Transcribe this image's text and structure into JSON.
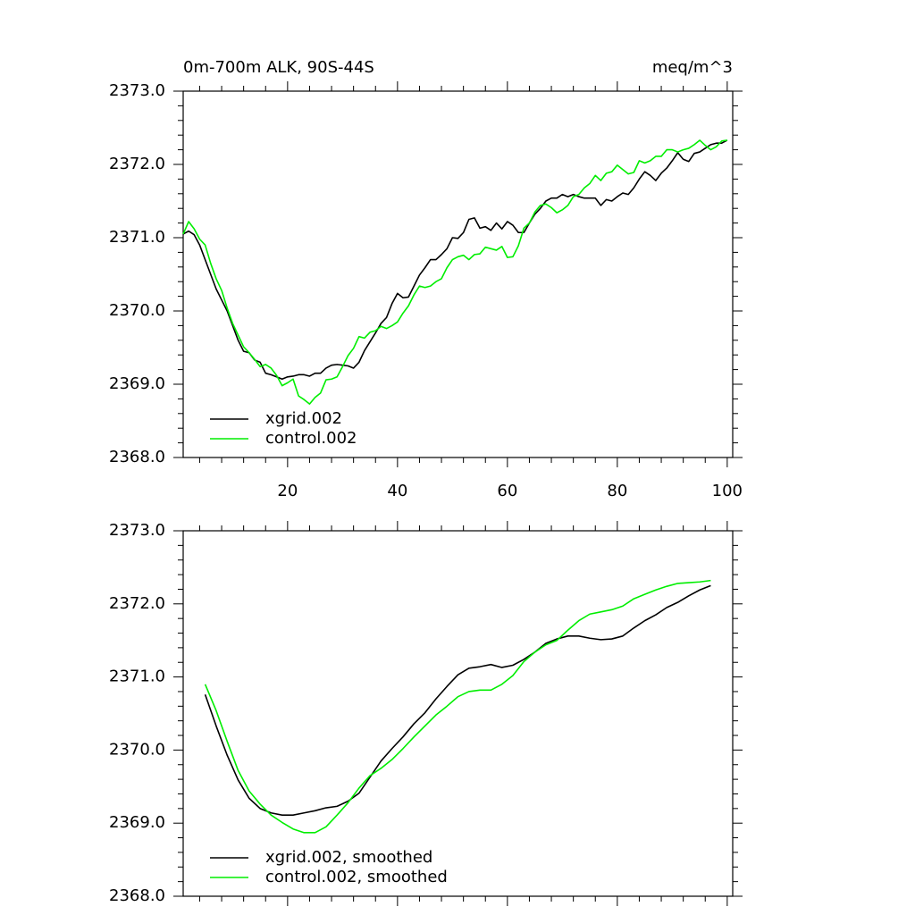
{
  "chart_data": [
    {
      "type": "line",
      "title": "0m-700m ALK, 90S-44S",
      "units": "meq/m^3",
      "x": [
        1,
        2,
        3,
        4,
        5,
        6,
        7,
        8,
        9,
        10,
        11,
        12,
        13,
        14,
        15,
        16,
        17,
        18,
        19,
        20,
        21,
        22,
        23,
        24,
        25,
        26,
        27,
        28,
        29,
        30,
        31,
        32,
        33,
        34,
        35,
        36,
        37,
        38,
        39,
        40,
        41,
        42,
        43,
        44,
        45,
        46,
        47,
        48,
        49,
        50,
        51,
        52,
        53,
        54,
        55,
        56,
        57,
        58,
        59,
        60,
        61,
        62,
        63,
        64,
        65,
        66,
        67,
        68,
        69,
        70,
        71,
        72,
        73,
        74,
        75,
        76,
        77,
        78,
        79,
        80,
        81,
        82,
        83,
        84,
        85,
        86,
        87,
        88,
        89,
        90,
        91,
        92,
        93,
        94,
        95,
        96,
        97,
        98,
        99,
        100
      ],
      "series": [
        {
          "name": "xgrid.002",
          "color": "#000000",
          "values": [
            2371.05,
            2371.09,
            2371.04,
            2370.9,
            2370.7,
            2370.5,
            2370.3,
            2370.15,
            2370.0,
            2369.8,
            2369.6,
            2369.45,
            2369.43,
            2369.33,
            2369.3,
            2369.15,
            2369.13,
            2369.1,
            2369.07,
            2369.1,
            2369.11,
            2369.13,
            2369.13,
            2369.11,
            2369.15,
            2369.15,
            2369.22,
            2369.26,
            2369.27,
            2369.26,
            2369.25,
            2369.22,
            2369.3,
            2369.46,
            2369.58,
            2369.7,
            2369.83,
            2369.91,
            2370.1,
            2370.24,
            2370.18,
            2370.19,
            2370.34,
            2370.49,
            2370.59,
            2370.7,
            2370.7,
            2370.77,
            2370.85,
            2371.0,
            2370.99,
            2371.07,
            2371.25,
            2371.27,
            2371.13,
            2371.15,
            2371.1,
            2371.2,
            2371.12,
            2371.22,
            2371.17,
            2371.07,
            2371.07,
            2371.2,
            2371.32,
            2371.4,
            2371.5,
            2371.54,
            2371.54,
            2371.59,
            2371.56,
            2371.59,
            2371.56,
            2371.54,
            2371.54,
            2371.54,
            2371.44,
            2371.52,
            2371.5,
            2371.56,
            2371.61,
            2371.59,
            2371.68,
            2371.8,
            2371.9,
            2371.85,
            2371.78,
            2371.88,
            2371.95,
            2372.05,
            2372.16,
            2372.07,
            2372.04,
            2372.15,
            2372.17,
            2372.22,
            2372.27,
            2372.29,
            2372.29,
            2372.33
          ]
        },
        {
          "name": "control.002",
          "color": "#00ee00",
          "values": [
            2371.05,
            2371.22,
            2371.12,
            2370.98,
            2370.9,
            2370.65,
            2370.44,
            2370.28,
            2370.04,
            2369.83,
            2369.67,
            2369.51,
            2369.43,
            2369.34,
            2369.24,
            2369.27,
            2369.22,
            2369.12,
            2368.98,
            2369.02,
            2369.07,
            2368.84,
            2368.79,
            2368.73,
            2368.82,
            2368.88,
            2369.06,
            2369.07,
            2369.1,
            2369.24,
            2369.39,
            2369.49,
            2369.65,
            2369.63,
            2369.71,
            2369.73,
            2369.79,
            2369.76,
            2369.8,
            2369.85,
            2369.97,
            2370.07,
            2370.22,
            2370.34,
            2370.32,
            2370.34,
            2370.4,
            2370.44,
            2370.59,
            2370.7,
            2370.74,
            2370.76,
            2370.7,
            2370.77,
            2370.78,
            2370.87,
            2370.85,
            2370.83,
            2370.88,
            2370.73,
            2370.74,
            2370.89,
            2371.13,
            2371.2,
            2371.35,
            2371.44,
            2371.46,
            2371.41,
            2371.34,
            2371.38,
            2371.44,
            2371.56,
            2371.59,
            2371.68,
            2371.74,
            2371.85,
            2371.78,
            2371.88,
            2371.9,
            2371.99,
            2371.93,
            2371.87,
            2371.89,
            2372.05,
            2372.02,
            2372.05,
            2372.11,
            2372.11,
            2372.2,
            2372.2,
            2372.17,
            2372.2,
            2372.22,
            2372.27,
            2372.33,
            2372.26,
            2372.2,
            2372.24,
            2372.32,
            2372.33
          ]
        }
      ],
      "xlim": [
        1,
        101
      ],
      "ylim": [
        2368,
        2373
      ],
      "xticks": [
        20,
        40,
        60,
        80,
        100
      ],
      "xtick_labels": true,
      "yticks": [
        {
          "value": 2368,
          "label": "2368.0"
        },
        {
          "value": 2369,
          "label": "2369.0"
        },
        {
          "value": 2370,
          "label": "2370.0"
        },
        {
          "value": 2371,
          "label": "2371.0"
        },
        {
          "value": 2372,
          "label": "2372.0"
        },
        {
          "value": 2373,
          "label": "2373.0"
        }
      ],
      "legend": "lower left"
    },
    {
      "type": "line",
      "x": [
        5,
        7,
        9,
        11,
        13,
        15,
        17,
        19,
        21,
        23,
        25,
        27,
        29,
        31,
        33,
        35,
        37,
        39,
        41,
        43,
        45,
        47,
        49,
        51,
        53,
        55,
        57,
        59,
        61,
        63,
        65,
        67,
        69,
        71,
        73,
        75,
        77,
        79,
        81,
        83,
        85,
        87,
        89,
        91,
        93,
        95,
        97
      ],
      "series": [
        {
          "name": "xgrid.002, smoothed",
          "color": "#000000",
          "values": [
            2370.76,
            2370.33,
            2369.93,
            2369.59,
            2369.34,
            2369.2,
            2369.14,
            2369.11,
            2369.11,
            2369.14,
            2369.17,
            2369.21,
            2369.23,
            2369.3,
            2369.41,
            2369.63,
            2369.85,
            2370.02,
            2370.18,
            2370.36,
            2370.51,
            2370.7,
            2370.87,
            2371.03,
            2371.12,
            2371.14,
            2371.17,
            2371.13,
            2371.16,
            2371.24,
            2371.34,
            2371.46,
            2371.52,
            2371.56,
            2371.56,
            2371.53,
            2371.51,
            2371.52,
            2371.56,
            2371.67,
            2371.77,
            2371.85,
            2371.95,
            2372.02,
            2372.11,
            2372.19,
            2372.25
          ]
        },
        {
          "name": "control.002, smoothed",
          "color": "#00ee00",
          "values": [
            2370.9,
            2370.54,
            2370.12,
            2369.72,
            2369.44,
            2369.26,
            2369.11,
            2369.01,
            2368.92,
            2368.87,
            2368.87,
            2368.95,
            2369.11,
            2369.28,
            2369.48,
            2369.65,
            2369.75,
            2369.87,
            2370.02,
            2370.18,
            2370.33,
            2370.48,
            2370.6,
            2370.73,
            2370.8,
            2370.82,
            2370.82,
            2370.9,
            2371.02,
            2371.21,
            2371.34,
            2371.44,
            2371.5,
            2371.64,
            2371.77,
            2371.86,
            2371.89,
            2371.92,
            2371.97,
            2372.07,
            2372.13,
            2372.19,
            2372.24,
            2372.28,
            2372.29,
            2372.3,
            2372.32
          ]
        }
      ],
      "xlim": [
        1,
        101
      ],
      "ylim": [
        2368,
        2373
      ],
      "xticks": [
        20,
        40,
        60,
        80,
        100
      ],
      "xtick_labels": false,
      "yticks": [
        {
          "value": 2368,
          "label": "2368.0"
        },
        {
          "value": 2369,
          "label": "2369.0"
        },
        {
          "value": 2370,
          "label": "2370.0"
        },
        {
          "value": 2371,
          "label": "2371.0"
        },
        {
          "value": 2372,
          "label": "2372.0"
        },
        {
          "value": 2373,
          "label": "2373.0"
        }
      ],
      "legend": "lower left"
    }
  ]
}
